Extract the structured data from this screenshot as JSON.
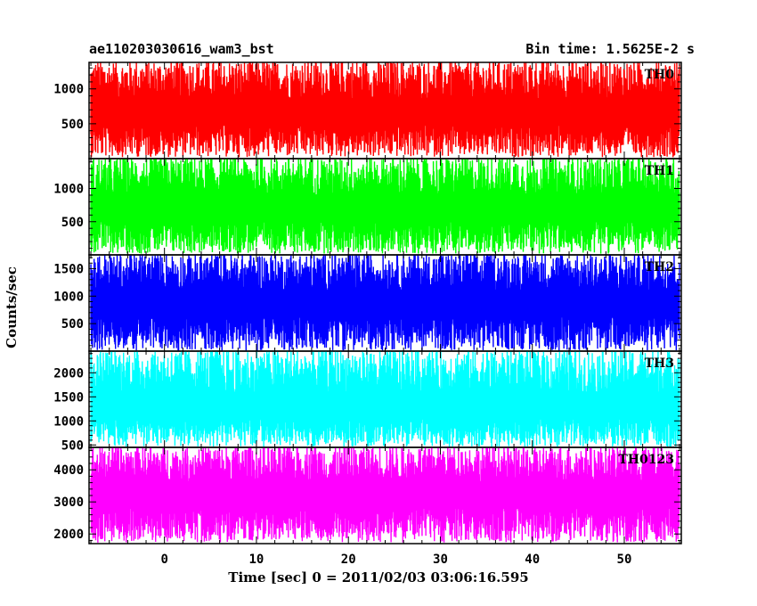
{
  "header": {
    "title_left": "ae110203030616_wam3_bst",
    "title_right": "Bin time: 1.5625E-2 s"
  },
  "axes": {
    "xlabel": "Time [sec] 0 = 2011/02/03 03:06:16.595",
    "ylabel": "Counts/sec"
  },
  "chart_data": {
    "type": "line",
    "title": "ae110203030616_wam3_bst",
    "subtitle": "Bin time: 1.5625E-2 s",
    "xlabel": "Time [sec] 0 = 2011/02/03 03:06:16.595",
    "ylabel": "Counts/sec",
    "xlim": [
      -8.2,
      56.2
    ],
    "x_ticks": [
      0,
      10,
      20,
      30,
      40,
      50
    ],
    "bin_time": 0.015625,
    "grid": false,
    "panels": [
      {
        "name": "TH0",
        "color": "#ff0000",
        "ylim": [
          0,
          1380
        ],
        "y_ticks": [
          500,
          1000
        ],
        "mean": 650,
        "min_approx": 50,
        "max_approx": 1380
      },
      {
        "name": "TH1",
        "color": "#00ff00",
        "ylim": [
          0,
          1450
        ],
        "y_ticks": [
          500,
          1000
        ],
        "mean": 680,
        "min_approx": 50,
        "max_approx": 1450
      },
      {
        "name": "TH2",
        "color": "#0000ff",
        "ylim": [
          0,
          1750
        ],
        "y_ticks": [
          500,
          1000,
          1500
        ],
        "mean": 850,
        "min_approx": 50,
        "max_approx": 1750
      },
      {
        "name": "TH3",
        "color": "#00ffff",
        "ylim": [
          450,
          2450
        ],
        "y_ticks": [
          500,
          1000,
          1500,
          2000
        ],
        "mean": 1250,
        "min_approx": 500,
        "max_approx": 2450
      },
      {
        "name": "TH0123",
        "color": "#ff00ff",
        "ylim": [
          1700,
          4700
        ],
        "y_ticks": [
          2000,
          3000,
          4000
        ],
        "mean": 3200,
        "min_approx": 1800,
        "max_approx": 4700
      }
    ]
  }
}
